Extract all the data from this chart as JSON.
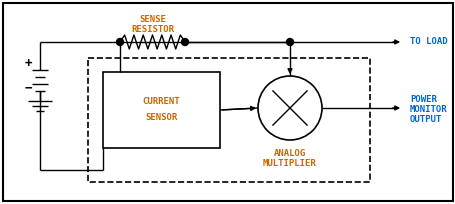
{
  "bg_color": "#ffffff",
  "border_color": "#000000",
  "current_sensor_label": [
    "CURRENT",
    "SENSOR"
  ],
  "current_sensor_color": "#cc6600",
  "resistor_label": [
    "SENSE",
    "RESISTOR"
  ],
  "resistor_color": "#cc6600",
  "to_load_label": "TO LOAD",
  "to_load_color": "#0066cc",
  "power_monitor_label": [
    "POWER",
    "MONITOR",
    "OUTPUT"
  ],
  "power_monitor_color": "#0066cc",
  "analog_mult_label": [
    "ANALOG",
    "MULTIPLIER"
  ],
  "analog_mult_color": "#cc6600",
  "line_color": "#000000",
  "dot_color": "#000000",
  "font_size": 6.5
}
